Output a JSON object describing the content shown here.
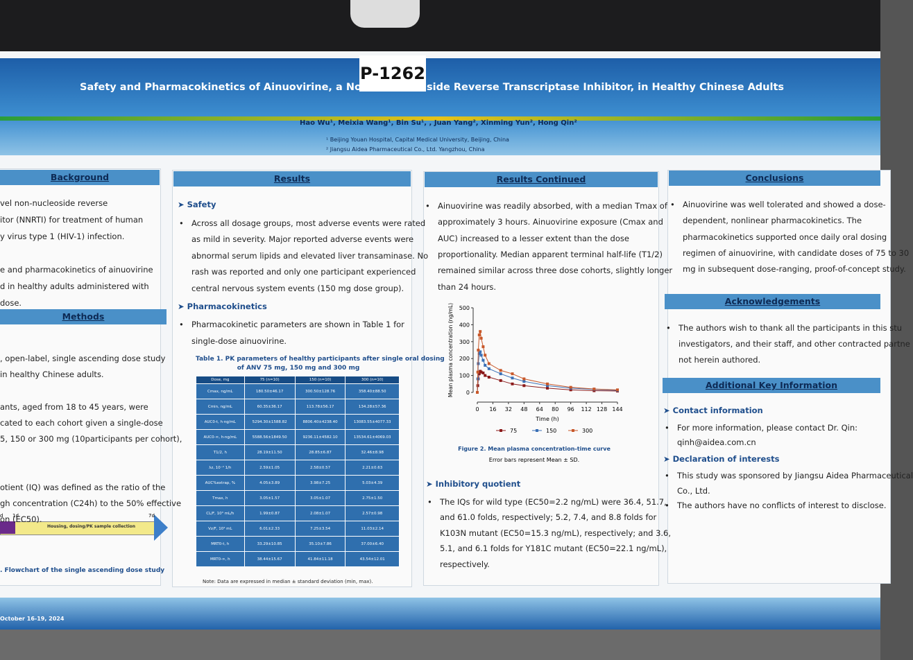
{
  "poster_id": "P-1262",
  "header": {
    "title": "Safety and Pharmacokinetics of Ainuovirine, a Novel",
    "title_end": "side Reverse Transcriptase Inhibitor, in Healthy Chinese Adults",
    "authors": "Hao Wu¹, Meixia Wang¹, Bin Su¹, , Juan Yang², Xinming Yun², Hong Qin²",
    "affiliations": [
      "¹ Beijing Youan Hospital, Capital Medical University, Beijing, China",
      "² Jiangsu Aidea Pharmaceutical Co., Ltd. Yangzhou, China"
    ]
  },
  "background": {
    "heading": "Background",
    "lines": [
      "vel non-nucleoside reverse",
      "itor (NNRTI) for treatment of human",
      "y virus type 1 (HIV-1) infection.",
      "",
      "e and pharmacokinetics of ainuovirine",
      "d in healthy adults administered with",
      "dose."
    ]
  },
  "methods": {
    "heading": "Methods",
    "lines": [
      ", open-label, single ascending dose study",
      "in healthy Chinese adults.",
      "",
      "ants, aged from 18 to 45 years, were",
      "cated to each cohort given a single-dose",
      "5, 150 or 300 mg (10participants per cohort),",
      "",
      "",
      "otient (IQ) was defined as the ratio of the",
      "gh concentration (C24h) to the 50% effective",
      "on (EC50)."
    ],
    "flowchart": {
      "day_start": "d",
      "day_1": "1d",
      "day_7": "7d",
      "bar_label": "Housing, dosing/PK sample collection",
      "caption": ". Flowchart of the single ascending dose study"
    }
  },
  "results": {
    "heading": "Results",
    "blocks": [
      {
        "label": "Safety",
        "bullets": [
          [
            "Across all dosage groups, most adverse events were rated",
            "as mild in severity. Major reported adverse events were",
            "abnormal serum lipids and elevated liver transaminase. No",
            "rash was reported and only one participant experienced",
            "central nervous system events (150 mg dose group)."
          ]
        ]
      },
      {
        "label": "Pharmacokinetics",
        "bullets": [
          [
            "Pharmacokinetic parameters are shown in Table 1 for",
            "single-dose ainuovirine."
          ]
        ]
      }
    ],
    "table": {
      "title": [
        "Table 1. PK parameters of healthy participants after single oral dosing",
        "of ANV 75 mg, 150 mg and 300 mg"
      ],
      "header": [
        "Dose, mg",
        "75 (n=10)",
        "150 (n=10)",
        "300 (n=10)"
      ],
      "rows": [
        [
          "Cmax, ng/mL",
          "180.50±46.17",
          "300.50±128.76",
          "358.40±88.50"
        ],
        [
          "Cmin, ng/mL",
          "60.35±36.17",
          "113.78±56.17",
          "134.28±57.36"
        ],
        [
          "AUC0-t, h·ng/mL",
          "5294.30±1588.82",
          "8806.40±4238.40",
          "13083.55±4077.33"
        ],
        [
          "AUC0-∞, h·ng/mL",
          "5588.56±1849.50",
          "9236.11±4582.10",
          "13534.61±4069.03"
        ],
        [
          "T1/2, h",
          "28.19±11.50",
          "28.85±6.87",
          "32.46±8.98"
        ],
        [
          "λz, 10⁻² 1/h",
          "2.59±1.05",
          "2.58±0.57",
          "2.21±0.63"
        ],
        [
          "AUC%extrap, %",
          "4.05±3.89",
          "3.98±7.25",
          "5.03±4.39"
        ],
        [
          "Tmax, h",
          "3.05±1.57",
          "3.05±1.07",
          "2.75±1.50"
        ],
        [
          "CL/F, 10³ mL/h",
          "1.99±0.87",
          "2.08±1.07",
          "2.57±0.98"
        ],
        [
          "Vz/F, 10⁴ mL",
          "6.01±2.33",
          "7.25±3.54",
          "11.03±2.14"
        ],
        [
          "MRT0-t, h",
          "33.29±10.85",
          "35.10±7.86",
          "37.00±6.40"
        ],
        [
          "MRT0-∞, h",
          "38.44±15.67",
          "41.84±11.18",
          "43.54±12.01"
        ]
      ],
      "note": "Note: Data are expressed in median ± standard deviation (min, max)."
    }
  },
  "results_continued": {
    "heading": "Results Continued",
    "blocks": [
      {
        "bullets": [
          [
            "Ainuovirine was readily absorbed, with a median Tmax of",
            "approximately 3 hours. Ainuovirine exposure (Cmax and",
            "AUC) increased to a lesser extent than the dose",
            "proportionality. Median apparent terminal half-life (T1/2)",
            "remained similar across three dose cohorts, slightly longer",
            "than 24 hours."
          ]
        ]
      }
    ],
    "blocks2": [
      {
        "label": "Inhibitory quotient",
        "bullets": [
          [
            "The IQs for wild type (EC50=2.2 ng/mL) were 36.4, 51.7,",
            "and 61.0 folds, respectively; 5.2, 7.4, and 8.8 folds for",
            "K103N mutant (EC50=15.3 ng/mL), respectively; and 3.6,",
            "5.1, and 6.1 folds for Y181C mutant (EC50=22.1 ng/mL),",
            "respectively."
          ]
        ]
      }
    ],
    "chart": {
      "type": "line",
      "ylabel": "Mean plasma concentration (ng/mL)",
      "xlabel": "Time (h)",
      "caption": [
        "Figure 2. Mean plasma concentration-time curve",
        "Error bars represent Mean ± SD."
      ],
      "x": [
        0,
        0.5,
        1,
        2,
        3,
        4,
        6,
        8,
        12,
        24,
        36,
        48,
        72,
        96,
        120,
        144
      ],
      "series": [
        {
          "name": "75",
          "color": "#8b1a1a",
          "values": [
            0,
            40,
            80,
            110,
            125,
            120,
            115,
            100,
            90,
            70,
            50,
            40,
            25,
            15,
            10,
            8
          ]
        },
        {
          "name": "150",
          "color": "#3a6fb5",
          "values": [
            0,
            80,
            170,
            230,
            240,
            220,
            190,
            160,
            140,
            110,
            85,
            65,
            40,
            25,
            18,
            12
          ]
        },
        {
          "name": "300",
          "color": "#c8582a",
          "values": [
            0,
            120,
            250,
            340,
            360,
            320,
            270,
            220,
            170,
            130,
            110,
            80,
            50,
            30,
            20,
            15
          ]
        }
      ],
      "xlim": [
        0,
        144
      ],
      "xticks": [
        0,
        16,
        32,
        48,
        64,
        80,
        96,
        112,
        128,
        144
      ],
      "ylim": [
        0,
        500
      ],
      "yticks": [
        0,
        100,
        200,
        300,
        400,
        500
      ]
    }
  },
  "conclusions": {
    "heading": "Conclusions",
    "blocks": [
      {
        "bullets": [
          [
            "Ainuovirine was well tolerated and showed a dose-",
            "dependent,   nonlinear pharmacokinetics. The",
            "pharmacokinetics supported once daily oral dosing",
            "regimen of ainuovirine, with candidate doses of 75 to 30",
            "mg in subsequent dose-ranging, proof-of-concept study."
          ]
        ]
      }
    ]
  },
  "acknowledgements": {
    "heading": "Acknowledgements",
    "blocks": [
      {
        "bullets": [
          [
            "The authors wish to thank all the participants in this stu",
            "investigators, and their staff, and other contracted partne",
            "not herein authored."
          ]
        ]
      }
    ]
  },
  "additional": {
    "heading": "Additional Key Information",
    "blocks": [
      {
        "label": "Contact information",
        "bullets": [
          [
            "For more information, please contact Dr. Qin:",
            "qinh@aidea.com.cn"
          ]
        ]
      },
      {
        "label": "Declaration of interests",
        "bullets": [
          [
            "This study was sponsored by Jiangsu Aidea Pharmaceutical",
            "Co., Ltd."
          ],
          [
            "The authors have no conflicts of interest to disclose."
          ]
        ]
      }
    ]
  },
  "footer": "October 16-19, 2024"
}
